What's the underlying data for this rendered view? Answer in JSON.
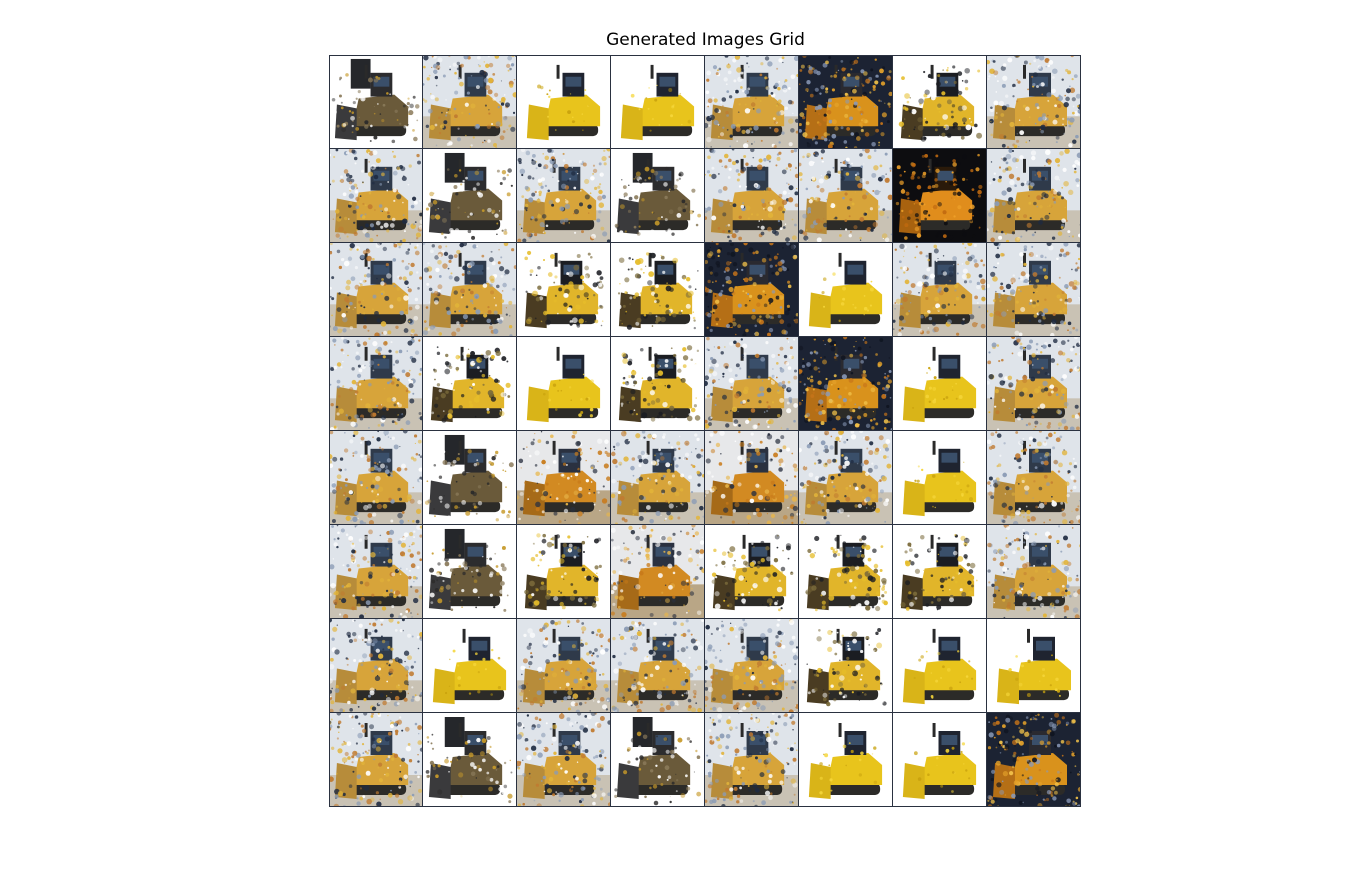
{
  "figure": {
    "title": "Generated Images Grid"
  },
  "grid": {
    "rows": 8,
    "cols": 8,
    "subject": "bulldozer",
    "colors": {
      "yellow": "#e8c41c",
      "orange": "#d9921c",
      "dark": "#2b2a2a",
      "sky": "#dfe4ea",
      "ground": "#c9c2b4",
      "black_bg": "#0d0d10",
      "navy_bg": "#1c2333"
    },
    "tiles": [
      [
        "dark-ghost",
        "noisy",
        "clean-yellow",
        "clean-yellow",
        "noisy",
        "orange-dark",
        "dark-yellow",
        "noisy"
      ],
      [
        "noisy",
        "dark-ghost",
        "noisy",
        "dark-ghost",
        "noisy",
        "noisy",
        "orange-black",
        "noisy"
      ],
      [
        "noisy",
        "noisy",
        "dark-yellow",
        "dark-yellow",
        "orange-dark",
        "clean-yellow",
        "noisy",
        "noisy"
      ],
      [
        "noisy",
        "dark-yellow",
        "clean-yellow",
        "dark-yellow",
        "noisy",
        "orange-dark",
        "clean-yellow",
        "noisy"
      ],
      [
        "noisy",
        "dark-ghost",
        "orange-noisy",
        "noisy",
        "orange-noisy",
        "noisy",
        "clean-yellow",
        "noisy"
      ],
      [
        "noisy",
        "dark-ghost",
        "dark-yellow",
        "orange-noisy",
        "dark-yellow",
        "dark-yellow",
        "dark-yellow",
        "noisy"
      ],
      [
        "noisy",
        "clean-yellow",
        "noisy",
        "noisy",
        "noisy",
        "dark-yellow",
        "clean-yellow",
        "clean-yellow"
      ],
      [
        "noisy",
        "dark-ghost",
        "noisy",
        "dark-ghost",
        "noisy",
        "clean-yellow",
        "clean-yellow",
        "orange-dark"
      ]
    ]
  }
}
